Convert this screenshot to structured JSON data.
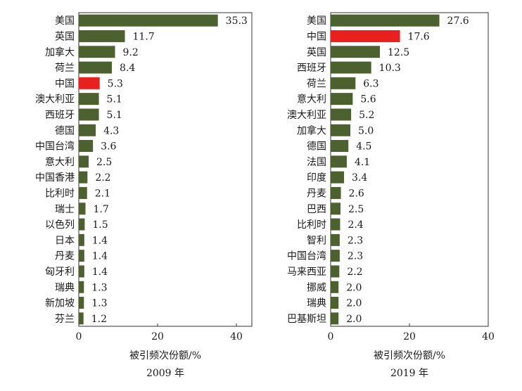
{
  "chart_data": [
    {
      "type": "bar",
      "orientation": "horizontal",
      "title": "2009 年",
      "xlabel": "被引频次份额/%",
      "xlim": [
        0,
        45
      ],
      "xticks": [
        "0",
        "20",
        "40"
      ],
      "categories": [
        "美国",
        "英国",
        "加拿大",
        "荷兰",
        "中国",
        "澳大利亚",
        "西班牙",
        "德国",
        "中国台湾",
        "意大利",
        "中国香港",
        "比利时",
        "瑞士",
        "以色列",
        "日本",
        "丹麦",
        "匈牙利",
        "瑞典",
        "新加坡",
        "芬兰"
      ],
      "values": [
        35.3,
        11.7,
        9.2,
        8.4,
        5.3,
        5.1,
        5.1,
        4.3,
        3.6,
        2.5,
        2.2,
        2.1,
        1.7,
        1.5,
        1.4,
        1.4,
        1.4,
        1.3,
        1.3,
        1.2
      ],
      "value_labels": [
        "35.3",
        "11.7",
        "9.2",
        "8.4",
        "5.3",
        "5.1",
        "5.1",
        "4.3",
        "3.6",
        "2.5",
        "2.2",
        "2.1",
        "1.7",
        "1.5",
        "1.4",
        "1.4",
        "1.4",
        "1.3",
        "1.3",
        "1.2"
      ],
      "highlight": "中国",
      "bar_color": "#4d6130",
      "highlight_color": "#e8201e"
    },
    {
      "type": "bar",
      "orientation": "horizontal",
      "title": "2019 年",
      "xlabel": "被引频次份额/%",
      "xlim": [
        0,
        40
      ],
      "xticks": [
        "0",
        "20",
        "40"
      ],
      "categories": [
        "美国",
        "中国",
        "英国",
        "西班牙",
        "荷兰",
        "意大利",
        "澳大利亚",
        "加拿大",
        "德国",
        "法国",
        "印度",
        "丹麦",
        "巴西",
        "比利时",
        "智利",
        "中国台湾",
        "马来西亚",
        "挪威",
        "瑞典",
        "巴基斯坦"
      ],
      "values": [
        27.6,
        17.6,
        12.5,
        10.3,
        6.3,
        5.6,
        5.2,
        5.0,
        4.5,
        4.1,
        3.4,
        2.6,
        2.5,
        2.4,
        2.3,
        2.3,
        2.2,
        2.0,
        2.0,
        2.0
      ],
      "value_labels": [
        "27.6",
        "17.6",
        "12.5",
        "10.3",
        "6.3",
        "5.6",
        "5.2",
        "5.0",
        "4.5",
        "4.1",
        "3.4",
        "2.6",
        "2.5",
        "2.4",
        "2.3",
        "2.3",
        "2.2",
        "2.0",
        "2.0",
        "2.0"
      ],
      "highlight": "中国",
      "bar_color": "#4d6130",
      "highlight_color": "#e8201e"
    }
  ]
}
